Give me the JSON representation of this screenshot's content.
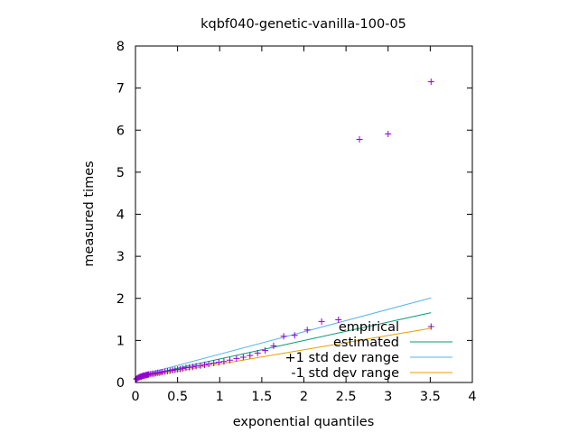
{
  "chart_data": {
    "type": "scatter",
    "title": "kqbf040-genetic-vanilla-100-05",
    "xlabel": "exponential quantiles",
    "ylabel": "measured times",
    "xlim": [
      0,
      4
    ],
    "ylim": [
      0,
      8
    ],
    "xticks": [
      "0",
      "0.5",
      "1",
      "1.5",
      "2",
      "2.5",
      "3",
      "3.5",
      "4"
    ],
    "yticks": [
      "0",
      "1",
      "2",
      "3",
      "4",
      "5",
      "6",
      "7",
      "8"
    ],
    "grid": false,
    "legend_position": "bottom-right",
    "series": [
      {
        "name": "empirical",
        "kind": "points",
        "marker": "+",
        "color": "#9400d3",
        "x": [
          0.01,
          0.02,
          0.03,
          0.04,
          0.05,
          0.06,
          0.07,
          0.08,
          0.09,
          0.1,
          0.11,
          0.12,
          0.13,
          0.14,
          0.15,
          0.16,
          0.18,
          0.2,
          0.22,
          0.24,
          0.26,
          0.28,
          0.3,
          0.32,
          0.35,
          0.38,
          0.41,
          0.44,
          0.47,
          0.5,
          0.53,
          0.56,
          0.6,
          0.64,
          0.68,
          0.72,
          0.77,
          0.82,
          0.87,
          0.93,
          0.99,
          1.05,
          1.12,
          1.2,
          1.28,
          1.36,
          1.45,
          1.54,
          1.64,
          1.76,
          1.89,
          2.04,
          2.21,
          2.41,
          2.66,
          3.0,
          3.51,
          3.51
        ],
        "y": [
          0.08,
          0.1,
          0.11,
          0.12,
          0.13,
          0.14,
          0.14,
          0.15,
          0.16,
          0.16,
          0.17,
          0.17,
          0.18,
          0.18,
          0.19,
          0.19,
          0.2,
          0.21,
          0.21,
          0.22,
          0.23,
          0.23,
          0.24,
          0.25,
          0.26,
          0.27,
          0.28,
          0.29,
          0.3,
          0.31,
          0.32,
          0.33,
          0.35,
          0.36,
          0.37,
          0.39,
          0.4,
          0.42,
          0.44,
          0.46,
          0.48,
          0.5,
          0.53,
          0.57,
          0.6,
          0.64,
          0.7,
          0.76,
          0.87,
          1.1,
          1.12,
          1.25,
          1.45,
          1.49,
          5.78,
          5.91,
          7.15,
          1.33
        ]
      },
      {
        "name": "estimated",
        "kind": "line",
        "color": "#009e73",
        "x": [
          0,
          3.51
        ],
        "y": [
          0.12,
          1.66
        ]
      },
      {
        "name": "+1 std dev range",
        "kind": "line",
        "color": "#56b4e9",
        "x": [
          0,
          3.51
        ],
        "y": [
          0.14,
          2.01
        ]
      },
      {
        "name": "-1 std dev range",
        "kind": "line",
        "color": "#e69f00",
        "x": [
          0,
          3.51
        ],
        "y": [
          0.1,
          1.29
        ]
      }
    ]
  }
}
